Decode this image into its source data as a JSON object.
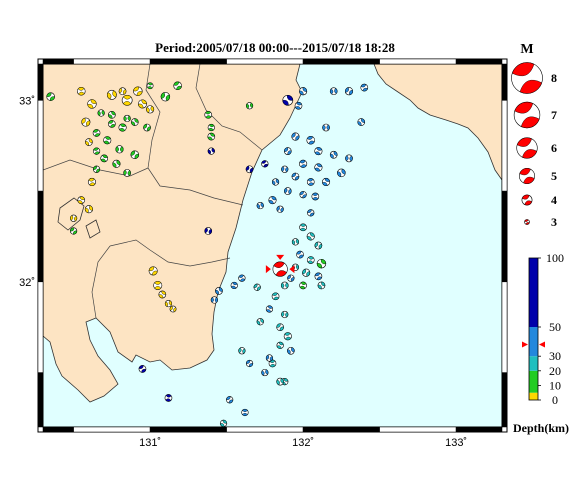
{
  "title": "Period:2005/07/18 00:00---2015/07/18 18:28",
  "map": {
    "lon_range": [
      130.3,
      133.3
    ],
    "lat_range": [
      31.2,
      33.2
    ],
    "x_ticks": [
      {
        "value": 131,
        "label": "131˚"
      },
      {
        "value": 132,
        "label": "132˚"
      },
      {
        "value": 133,
        "label": "133˚"
      }
    ],
    "y_ticks": [
      {
        "value": 33,
        "label": "33˚"
      },
      {
        "value": 32,
        "label": "32˚"
      }
    ],
    "colors": {
      "sea": "#e0ffff",
      "land": "#fde4c3",
      "shallow": "#ffd700",
      "d10_20": "#22cc22",
      "d20_30": "#1fbfbf",
      "d30_50": "#2288dd",
      "deep": "#0000aa",
      "event": "#ff0000"
    }
  },
  "magnitude_legend": {
    "title": "M",
    "items": [
      {
        "label": "8",
        "mag": 8
      },
      {
        "label": "7",
        "mag": 7
      },
      {
        "label": "6",
        "mag": 6
      },
      {
        "label": "5",
        "mag": 5
      },
      {
        "label": "4",
        "mag": 4
      },
      {
        "label": "3",
        "mag": 3
      }
    ]
  },
  "depth_colorbar": {
    "title": "Depth(km)",
    "ticks": [
      {
        "label": "100",
        "value": 100
      },
      {
        "label": "50",
        "value": 50
      },
      {
        "label": "30",
        "value": 30
      },
      {
        "label": "20",
        "value": 20
      },
      {
        "label": "10",
        "value": 10
      },
      {
        "label": "0",
        "value": 0
      }
    ],
    "bands": [
      {
        "from": 0,
        "to": 5,
        "color": "#ffd700"
      },
      {
        "from": 5,
        "to": 20,
        "color": "#22cc22"
      },
      {
        "from": 20,
        "to": 30,
        "color": "#1fbfbf"
      },
      {
        "from": 30,
        "to": 50,
        "color": "#2288dd"
      },
      {
        "from": 50,
        "to": 100,
        "color": "#0000aa"
      }
    ],
    "marker_value": 38
  },
  "main_event": {
    "lon": 131.85,
    "lat": 32.07,
    "depth": 38,
    "mag": 5.3
  },
  "events": [
    {
      "lon": 130.35,
      "lat": 33.02,
      "depth": 15,
      "mag": 3.8
    },
    {
      "lon": 130.55,
      "lat": 33.05,
      "depth": 3,
      "mag": 3.8
    },
    {
      "lon": 130.62,
      "lat": 32.98,
      "depth": 3,
      "mag": 4.0
    },
    {
      "lon": 130.75,
      "lat": 33.03,
      "depth": 3,
      "mag": 4.1
    },
    {
      "lon": 130.82,
      "lat": 33.05,
      "depth": 3,
      "mag": 3.6
    },
    {
      "lon": 130.92,
      "lat": 33.05,
      "depth": 3,
      "mag": 4.0
    },
    {
      "lon": 130.85,
      "lat": 33.0,
      "depth": 3,
      "mag": 4.3
    },
    {
      "lon": 130.95,
      "lat": 32.98,
      "depth": 3,
      "mag": 3.9
    },
    {
      "lon": 131.0,
      "lat": 32.95,
      "depth": 3,
      "mag": 3.7
    },
    {
      "lon": 131.1,
      "lat": 33.02,
      "depth": 15,
      "mag": 4.0
    },
    {
      "lon": 131.18,
      "lat": 33.08,
      "depth": 15,
      "mag": 3.8
    },
    {
      "lon": 131.0,
      "lat": 33.08,
      "depth": 15,
      "mag": 3.4
    },
    {
      "lon": 130.75,
      "lat": 32.92,
      "depth": 15,
      "mag": 3.6
    },
    {
      "lon": 130.68,
      "lat": 32.93,
      "depth": 15,
      "mag": 3.5
    },
    {
      "lon": 130.58,
      "lat": 32.88,
      "depth": 3,
      "mag": 3.9
    },
    {
      "lon": 130.75,
      "lat": 32.87,
      "depth": 15,
      "mag": 3.6
    },
    {
      "lon": 130.82,
      "lat": 32.85,
      "depth": 15,
      "mag": 3.7
    },
    {
      "lon": 130.9,
      "lat": 32.88,
      "depth": 15,
      "mag": 3.6
    },
    {
      "lon": 130.85,
      "lat": 32.9,
      "depth": 15,
      "mag": 3.5
    },
    {
      "lon": 130.98,
      "lat": 32.85,
      "depth": 15,
      "mag": 3.6
    },
    {
      "lon": 130.65,
      "lat": 32.82,
      "depth": 15,
      "mag": 3.6
    },
    {
      "lon": 130.72,
      "lat": 32.78,
      "depth": 15,
      "mag": 3.7
    },
    {
      "lon": 130.6,
      "lat": 32.77,
      "depth": 3,
      "mag": 3.6
    },
    {
      "lon": 130.8,
      "lat": 32.73,
      "depth": 15,
      "mag": 3.7
    },
    {
      "lon": 130.9,
      "lat": 32.7,
      "depth": 15,
      "mag": 3.8
    },
    {
      "lon": 130.65,
      "lat": 32.72,
      "depth": 15,
      "mag": 3.5
    },
    {
      "lon": 130.7,
      "lat": 32.68,
      "depth": 15,
      "mag": 3.6
    },
    {
      "lon": 130.78,
      "lat": 32.65,
      "depth": 15,
      "mag": 3.7
    },
    {
      "lon": 130.85,
      "lat": 32.6,
      "depth": 15,
      "mag": 3.6
    },
    {
      "lon": 130.65,
      "lat": 32.62,
      "depth": 15,
      "mag": 3.5
    },
    {
      "lon": 130.62,
      "lat": 32.55,
      "depth": 3,
      "mag": 3.7
    },
    {
      "lon": 130.55,
      "lat": 32.45,
      "depth": 3,
      "mag": 3.6
    },
    {
      "lon": 130.6,
      "lat": 32.4,
      "depth": 3,
      "mag": 3.7
    },
    {
      "lon": 130.5,
      "lat": 32.35,
      "depth": 3,
      "mag": 3.5
    },
    {
      "lon": 130.5,
      "lat": 32.28,
      "depth": 15,
      "mag": 3.5
    },
    {
      "lon": 131.38,
      "lat": 32.92,
      "depth": 15,
      "mag": 3.6
    },
    {
      "lon": 131.4,
      "lat": 32.8,
      "depth": 15,
      "mag": 3.6
    },
    {
      "lon": 131.4,
      "lat": 32.72,
      "depth": 60,
      "mag": 3.5
    },
    {
      "lon": 131.38,
      "lat": 32.28,
      "depth": 60,
      "mag": 3.6
    },
    {
      "lon": 131.02,
      "lat": 32.06,
      "depth": 3,
      "mag": 3.9
    },
    {
      "lon": 131.05,
      "lat": 31.98,
      "depth": 3,
      "mag": 3.9
    },
    {
      "lon": 131.08,
      "lat": 31.93,
      "depth": 3,
      "mag": 3.6
    },
    {
      "lon": 131.12,
      "lat": 31.88,
      "depth": 3,
      "mag": 3.5
    },
    {
      "lon": 131.15,
      "lat": 31.85,
      "depth": 3,
      "mag": 3.4
    },
    {
      "lon": 130.95,
      "lat": 31.52,
      "depth": 60,
      "mag": 3.6
    },
    {
      "lon": 131.12,
      "lat": 31.36,
      "depth": 60,
      "mag": 3.6
    },
    {
      "lon": 131.9,
      "lat": 33.0,
      "depth": 60,
      "mag": 4.3
    },
    {
      "lon": 131.65,
      "lat": 32.97,
      "depth": 15,
      "mag": 3.5
    },
    {
      "lon": 131.65,
      "lat": 32.62,
      "depth": 60,
      "mag": 3.6
    },
    {
      "lon": 131.75,
      "lat": 32.65,
      "depth": 60,
      "mag": 3.5
    },
    {
      "lon": 131.4,
      "lat": 32.85,
      "depth": 15,
      "mag": 3.5
    },
    {
      "lon": 132.0,
      "lat": 33.05,
      "depth": 40,
      "mag": 3.7
    },
    {
      "lon": 132.2,
      "lat": 33.05,
      "depth": 40,
      "mag": 3.6
    },
    {
      "lon": 132.3,
      "lat": 33.05,
      "depth": 40,
      "mag": 3.7
    },
    {
      "lon": 132.4,
      "lat": 33.07,
      "depth": 40,
      "mag": 3.6
    },
    {
      "lon": 131.97,
      "lat": 32.97,
      "depth": 40,
      "mag": 3.6
    },
    {
      "lon": 132.38,
      "lat": 32.88,
      "depth": 40,
      "mag": 3.6
    },
    {
      "lon": 132.15,
      "lat": 32.85,
      "depth": 40,
      "mag": 3.6
    },
    {
      "lon": 131.95,
      "lat": 32.8,
      "depth": 40,
      "mag": 3.7
    },
    {
      "lon": 132.05,
      "lat": 32.78,
      "depth": 40,
      "mag": 3.8
    },
    {
      "lon": 132.1,
      "lat": 32.72,
      "depth": 40,
      "mag": 3.7
    },
    {
      "lon": 132.2,
      "lat": 32.7,
      "depth": 40,
      "mag": 3.6
    },
    {
      "lon": 132.3,
      "lat": 32.68,
      "depth": 40,
      "mag": 3.6
    },
    {
      "lon": 131.9,
      "lat": 32.72,
      "depth": 40,
      "mag": 3.6
    },
    {
      "lon": 132.0,
      "lat": 32.65,
      "depth": 40,
      "mag": 3.7
    },
    {
      "lon": 132.1,
      "lat": 32.63,
      "depth": 40,
      "mag": 3.7
    },
    {
      "lon": 132.25,
      "lat": 32.6,
      "depth": 40,
      "mag": 3.8
    },
    {
      "lon": 131.88,
      "lat": 32.62,
      "depth": 40,
      "mag": 3.5
    },
    {
      "lon": 131.95,
      "lat": 32.58,
      "depth": 40,
      "mag": 3.6
    },
    {
      "lon": 132.05,
      "lat": 32.55,
      "depth": 40,
      "mag": 3.6
    },
    {
      "lon": 132.15,
      "lat": 32.55,
      "depth": 40,
      "mag": 3.7
    },
    {
      "lon": 131.82,
      "lat": 32.55,
      "depth": 40,
      "mag": 3.5
    },
    {
      "lon": 131.9,
      "lat": 32.5,
      "depth": 40,
      "mag": 3.6
    },
    {
      "lon": 132.0,
      "lat": 32.48,
      "depth": 40,
      "mag": 3.5
    },
    {
      "lon": 132.08,
      "lat": 32.47,
      "depth": 40,
      "mag": 3.6
    },
    {
      "lon": 131.8,
      "lat": 32.45,
      "depth": 40,
      "mag": 3.7
    },
    {
      "lon": 131.72,
      "lat": 32.42,
      "depth": 40,
      "mag": 3.5
    },
    {
      "lon": 131.85,
      "lat": 32.4,
      "depth": 40,
      "mag": 3.5
    },
    {
      "lon": 132.05,
      "lat": 32.38,
      "depth": 40,
      "mag": 3.5
    },
    {
      "lon": 132.0,
      "lat": 32.3,
      "depth": 25,
      "mag": 3.6
    },
    {
      "lon": 132.05,
      "lat": 32.25,
      "depth": 25,
      "mag": 3.7
    },
    {
      "lon": 131.95,
      "lat": 32.22,
      "depth": 25,
      "mag": 3.5
    },
    {
      "lon": 132.1,
      "lat": 32.2,
      "depth": 25,
      "mag": 3.6
    },
    {
      "lon": 131.98,
      "lat": 32.15,
      "depth": 40,
      "mag": 3.6
    },
    {
      "lon": 132.05,
      "lat": 32.12,
      "depth": 25,
      "mag": 3.6
    },
    {
      "lon": 132.12,
      "lat": 32.1,
      "depth": 15,
      "mag": 4.0
    },
    {
      "lon": 131.95,
      "lat": 32.08,
      "depth": 25,
      "mag": 3.5
    },
    {
      "lon": 132.02,
      "lat": 32.05,
      "depth": 25,
      "mag": 3.7
    },
    {
      "lon": 132.1,
      "lat": 32.03,
      "depth": 40,
      "mag": 3.6
    },
    {
      "lon": 132.0,
      "lat": 31.98,
      "depth": 15,
      "mag": 3.6
    },
    {
      "lon": 132.12,
      "lat": 31.98,
      "depth": 25,
      "mag": 3.6
    },
    {
      "lon": 131.88,
      "lat": 31.98,
      "depth": 25,
      "mag": 3.6
    },
    {
      "lon": 131.92,
      "lat": 32.02,
      "depth": 40,
      "mag": 3.5
    },
    {
      "lon": 131.6,
      "lat": 32.02,
      "depth": 40,
      "mag": 3.5
    },
    {
      "lon": 131.55,
      "lat": 31.98,
      "depth": 40,
      "mag": 3.5
    },
    {
      "lon": 131.45,
      "lat": 31.95,
      "depth": 40,
      "mag": 3.6
    },
    {
      "lon": 131.42,
      "lat": 31.9,
      "depth": 40,
      "mag": 3.5
    },
    {
      "lon": 131.7,
      "lat": 31.97,
      "depth": 25,
      "mag": 3.5
    },
    {
      "lon": 131.82,
      "lat": 31.92,
      "depth": 25,
      "mag": 3.6
    },
    {
      "lon": 131.78,
      "lat": 31.85,
      "depth": 40,
      "mag": 3.5
    },
    {
      "lon": 131.72,
      "lat": 31.78,
      "depth": 25,
      "mag": 3.5
    },
    {
      "lon": 131.88,
      "lat": 31.82,
      "depth": 25,
      "mag": 3.5
    },
    {
      "lon": 131.85,
      "lat": 31.75,
      "depth": 25,
      "mag": 3.6
    },
    {
      "lon": 131.9,
      "lat": 31.7,
      "depth": 25,
      "mag": 3.7
    },
    {
      "lon": 131.85,
      "lat": 31.65,
      "depth": 25,
      "mag": 3.5
    },
    {
      "lon": 131.92,
      "lat": 31.62,
      "depth": 40,
      "mag": 3.6
    },
    {
      "lon": 131.6,
      "lat": 31.62,
      "depth": 25,
      "mag": 3.5
    },
    {
      "lon": 131.65,
      "lat": 31.55,
      "depth": 40,
      "mag": 3.5
    },
    {
      "lon": 131.8,
      "lat": 31.55,
      "depth": 25,
      "mag": 3.6
    },
    {
      "lon": 131.88,
      "lat": 31.45,
      "depth": 25,
      "mag": 3.5
    },
    {
      "lon": 131.85,
      "lat": 31.45,
      "depth": 25,
      "mag": 3.6
    },
    {
      "lon": 131.78,
      "lat": 31.58,
      "depth": 40,
      "mag": 3.5
    },
    {
      "lon": 131.52,
      "lat": 31.35,
      "depth": 40,
      "mag": 3.5
    },
    {
      "lon": 131.62,
      "lat": 31.28,
      "depth": 40,
      "mag": 3.5
    },
    {
      "lon": 131.48,
      "lat": 31.22,
      "depth": 25,
      "mag": 3.5
    },
    {
      "lon": 131.75,
      "lat": 31.5,
      "depth": 40,
      "mag": 3.5
    }
  ]
}
